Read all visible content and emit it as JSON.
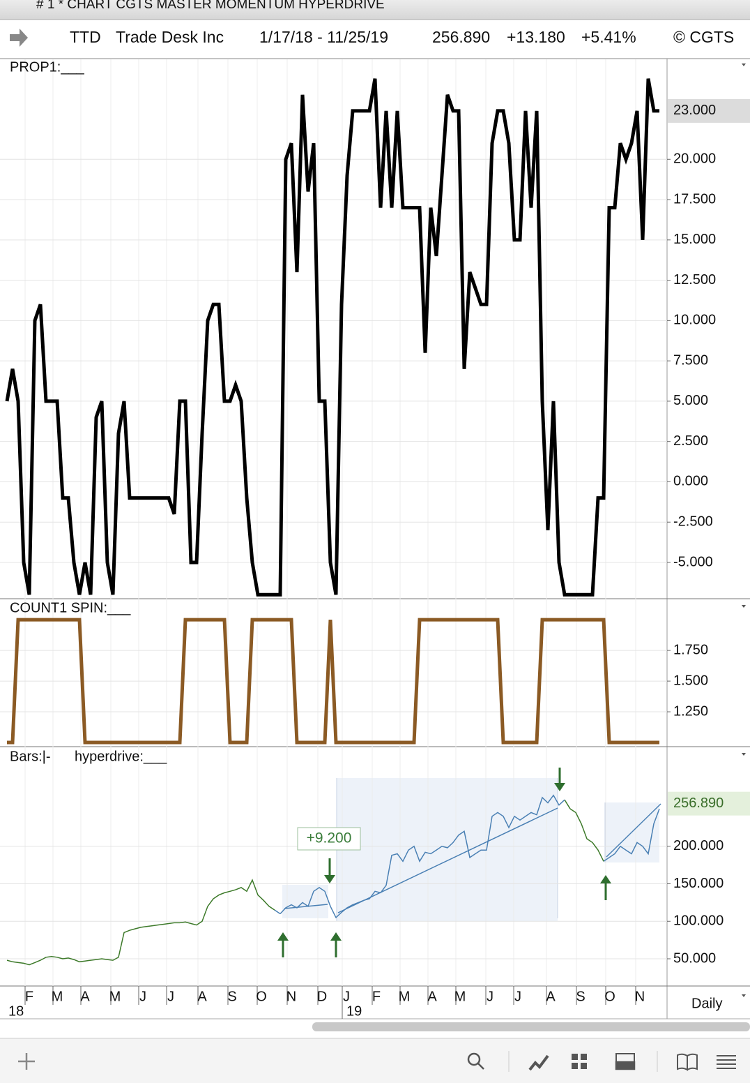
{
  "window_title": "# 1 * CHART CGTS MASTER MOMENTUM HYPERDRIVE",
  "header": {
    "symbol": "TTD",
    "name": "Trade Desk Inc",
    "range": "1/17/18 - 11/25/19",
    "price": "256.890",
    "change": "+13.180",
    "change_pct": "+5.41%",
    "copyright": "© CGTS"
  },
  "chart_data": [
    {
      "type": "line",
      "label": "PROP1:___",
      "ylim": [
        -7.25,
        26.2
      ],
      "yticks": [
        {
          "value": -5,
          "label": "-5.000"
        },
        {
          "value": -2.5,
          "label": "-2.500"
        },
        {
          "value": 0,
          "label": "0.000"
        },
        {
          "value": 2.5,
          "label": "2.500"
        },
        {
          "value": 5,
          "label": "5.000"
        },
        {
          "value": 7.5,
          "label": "7.500"
        },
        {
          "value": 10,
          "label": "10.000"
        },
        {
          "value": 12.5,
          "label": "12.500"
        },
        {
          "value": 15,
          "label": "15.000"
        },
        {
          "value": 17.5,
          "label": "17.500"
        },
        {
          "value": 20,
          "label": "20.000"
        }
      ],
      "last_value": {
        "value": 23,
        "label": "23.000"
      },
      "grid": true,
      "series": [
        {
          "color": "#000000",
          "values": [
            5,
            7,
            5,
            -5,
            -7,
            10,
            11,
            5,
            5,
            5,
            -1,
            -1,
            -5,
            -7,
            -5,
            -7,
            4,
            5,
            -5,
            -7,
            3,
            5,
            -1,
            -1,
            -1,
            -1,
            -1,
            -1,
            -1,
            -1,
            -2,
            5,
            5,
            -5,
            -5,
            3,
            10,
            11,
            11,
            5,
            5,
            6,
            5,
            -1,
            -5,
            -7,
            -7,
            -7,
            -7,
            -7,
            20,
            21,
            13,
            24,
            18,
            21,
            5,
            5,
            -5,
            -7,
            11,
            19,
            23,
            23,
            23,
            23,
            25,
            17,
            23,
            17,
            23,
            17,
            17,
            17,
            17,
            8,
            17,
            14,
            19,
            24,
            23,
            23,
            7,
            13,
            12,
            11,
            11,
            21,
            23,
            23,
            21,
            15,
            15,
            23,
            17,
            23,
            5,
            -3,
            5,
            -5,
            -7,
            -7,
            -7,
            -7,
            -7,
            -7,
            -1,
            -1,
            17,
            17,
            21,
            20,
            21,
            23,
            15,
            25,
            23,
            23
          ]
        }
      ]
    },
    {
      "type": "line",
      "label": "COUNT1 SPIN:___",
      "ylim": [
        0.966,
        2.16
      ],
      "yticks": [
        {
          "value": 1.25,
          "label": "1.250"
        },
        {
          "value": 1.5,
          "label": "1.500"
        },
        {
          "value": 1.75,
          "label": "1.750"
        }
      ],
      "grid": true,
      "series": [
        {
          "color": "#8b5a24",
          "values": [
            1,
            1,
            2,
            2,
            2,
            2,
            2,
            2,
            2,
            2,
            2,
            2,
            2,
            2,
            1,
            1,
            1,
            1,
            1,
            1,
            1,
            1,
            1,
            1,
            1,
            1,
            1,
            1,
            1,
            1,
            1,
            1,
            2,
            2,
            2,
            2,
            2,
            2,
            2,
            2,
            1,
            1,
            1,
            1,
            2,
            2,
            2,
            2,
            2,
            2,
            2,
            2,
            1,
            1,
            1,
            1,
            1,
            1,
            2,
            1,
            1,
            1,
            1,
            1,
            1,
            1,
            1,
            1,
            1,
            1,
            1,
            1,
            1,
            1,
            2,
            2,
            2,
            2,
            2,
            2,
            2,
            2,
            2,
            2,
            2,
            2,
            2,
            2,
            2,
            1,
            1,
            1,
            1,
            1,
            1,
            1,
            2,
            2,
            2,
            2,
            2,
            2,
            2,
            2,
            2,
            2,
            2,
            2,
            1,
            1,
            1,
            1,
            1,
            1,
            1,
            1,
            1,
            1
          ]
        }
      ]
    },
    {
      "type": "line",
      "label": "Bars:|-",
      "label2": "hyperdrive:___",
      "ylim": [
        13.7,
        331
      ],
      "yticks": [
        {
          "value": 50,
          "label": "50.000"
        },
        {
          "value": 100,
          "label": "100.000"
        },
        {
          "value": 150,
          "label": "150.000"
        },
        {
          "value": 200,
          "label": "200.000"
        }
      ],
      "last_value": {
        "value": 256.89,
        "label": "256.890"
      },
      "annotation": "+9.200",
      "grid": true,
      "series": [
        {
          "color": "#3d7a2a",
          "highlight_color": "#4a80b4",
          "values": [
            48,
            46,
            45,
            44,
            42,
            45,
            48,
            52,
            53,
            52,
            50,
            51,
            49,
            46,
            47,
            48,
            49,
            50,
            49,
            48,
            52,
            85,
            88,
            90,
            92,
            93,
            94,
            95,
            96,
            97,
            98,
            98,
            99,
            97,
            95,
            100,
            120,
            130,
            135,
            138,
            140,
            142,
            145,
            140,
            155,
            135,
            128,
            120,
            115,
            110,
            118,
            122,
            118,
            125,
            120,
            140,
            145,
            140,
            120,
            105,
            112,
            118,
            122,
            125,
            128,
            130,
            140,
            138,
            148,
            188,
            190,
            180,
            195,
            200,
            180,
            192,
            190,
            195,
            200,
            198,
            205,
            215,
            220,
            185,
            190,
            195,
            195,
            240,
            245,
            240,
            225,
            240,
            235,
            240,
            245,
            242,
            265,
            258,
            268,
            255,
            262,
            250,
            245,
            230,
            210,
            205,
            195,
            180,
            185,
            190,
            200,
            195,
            190,
            205,
            200,
            190,
            230,
            250
          ]
        }
      ]
    }
  ],
  "time_axis": {
    "months": [
      "F",
      "M",
      "A",
      "M",
      "J",
      "J",
      "A",
      "S",
      "O",
      "N",
      "D",
      "J",
      "F",
      "M",
      "A",
      "M",
      "J",
      "J",
      "A",
      "S",
      "O",
      "N"
    ],
    "years": [
      "18",
      "19"
    ],
    "interval": "Daily"
  }
}
